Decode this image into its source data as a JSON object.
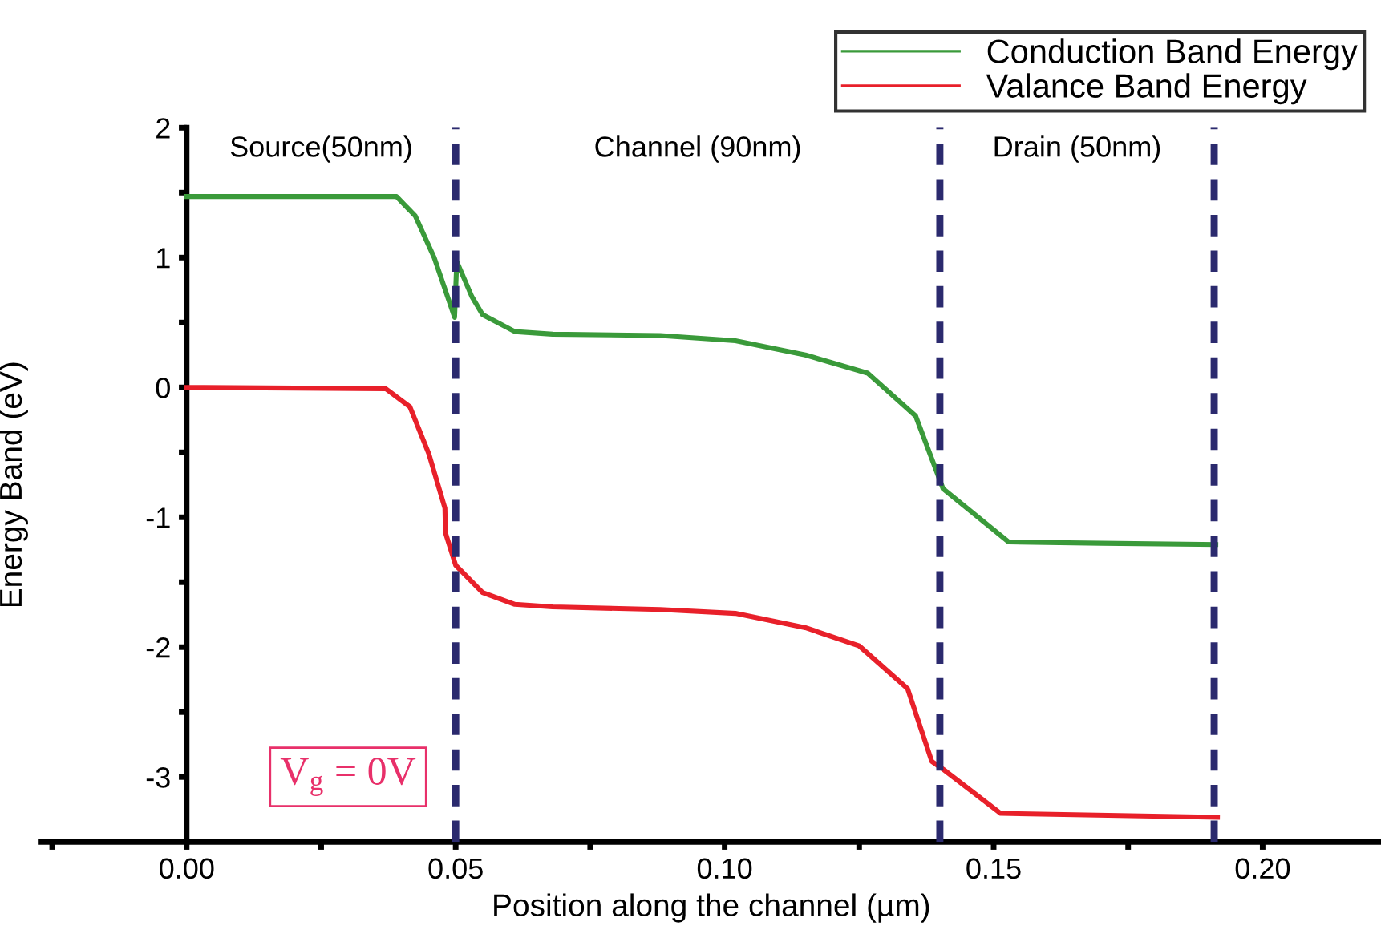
{
  "chart_data": {
    "type": "line",
    "xlabel": "Position along the channel (µm)",
    "ylabel": "Energy Band (eV)",
    "xlim": [
      -0.027,
      0.222
    ],
    "ylim": [
      -3.5,
      2
    ],
    "xticks": [
      {
        "value": -0.025,
        "label": null
      },
      {
        "value": 0,
        "label": "0.00"
      },
      {
        "value": 0.025,
        "label": null
      },
      {
        "value": 0.05,
        "label": "0.05"
      },
      {
        "value": 0.075,
        "label": null
      },
      {
        "value": 0.1,
        "label": "0.10"
      },
      {
        "value": 0.125,
        "label": null
      },
      {
        "value": 0.15,
        "label": "0.15"
      },
      {
        "value": 0.175,
        "label": null
      },
      {
        "value": 0.2,
        "label": "0.20"
      }
    ],
    "yticks": [
      {
        "value": -3,
        "label": "-3"
      },
      {
        "value": -2.5,
        "label": null
      },
      {
        "value": -2,
        "label": "-2"
      },
      {
        "value": -1.5,
        "label": null
      },
      {
        "value": -1,
        "label": "-1"
      },
      {
        "value": -0.5,
        "label": null
      },
      0,
      {
        "value": 0.5,
        "label": null
      },
      1,
      {
        "value": 1.5,
        "label": null
      },
      2
    ],
    "grid": false,
    "legend": "top right",
    "marker": "none",
    "line_style": "solid",
    "series": [
      {
        "name": "Conduction Band Energy",
        "color": "#3a9a3a",
        "x": [
          0,
          0.039,
          0.0425,
          0.046,
          0.0498,
          0.0502,
          0.053,
          0.055,
          0.061,
          0.068,
          0.088,
          0.102,
          0.115,
          0.1266,
          0.1355,
          0.1406,
          0.1528,
          0.17,
          0.1913
        ],
        "values": [
          1.47,
          1.47,
          1.32,
          1.0,
          0.54,
          0.97,
          0.7,
          0.56,
          0.43,
          0.41,
          0.4,
          0.36,
          0.25,
          0.11,
          -0.22,
          -0.78,
          -1.19,
          -1.2,
          -1.21
        ]
      },
      {
        "name": "Valance Band Energy",
        "color": "#e8202a",
        "x": [
          0,
          0.037,
          0.0415,
          0.045,
          0.048,
          0.0481,
          0.05,
          0.055,
          0.061,
          0.068,
          0.088,
          0.102,
          0.115,
          0.125,
          0.134,
          0.1385,
          0.1406,
          0.1513,
          0.1916
        ],
        "values": [
          0,
          -0.01,
          -0.15,
          -0.51,
          -0.93,
          -1.12,
          -1.37,
          -1.58,
          -1.67,
          -1.69,
          -1.71,
          -1.74,
          -1.85,
          -1.99,
          -2.32,
          -2.88,
          -2.94,
          -3.28,
          -3.31
        ]
      }
    ],
    "ref_lines": [
      {
        "axis": "x",
        "value": 0.05,
        "color": "#2b2a6e",
        "line_style": "dashed"
      },
      {
        "axis": "x",
        "value": 0.14,
        "color": "#2b2a6e",
        "line_style": "dashed"
      },
      {
        "axis": "x",
        "value": 0.191,
        "color": "#2b2a6e",
        "line_style": "dashed"
      }
    ],
    "annotations": [
      "Source(50nm)",
      "Channel (90nm)",
      "Drain (50nm)",
      "V$_{g}$ = 0V"
    ]
  }
}
